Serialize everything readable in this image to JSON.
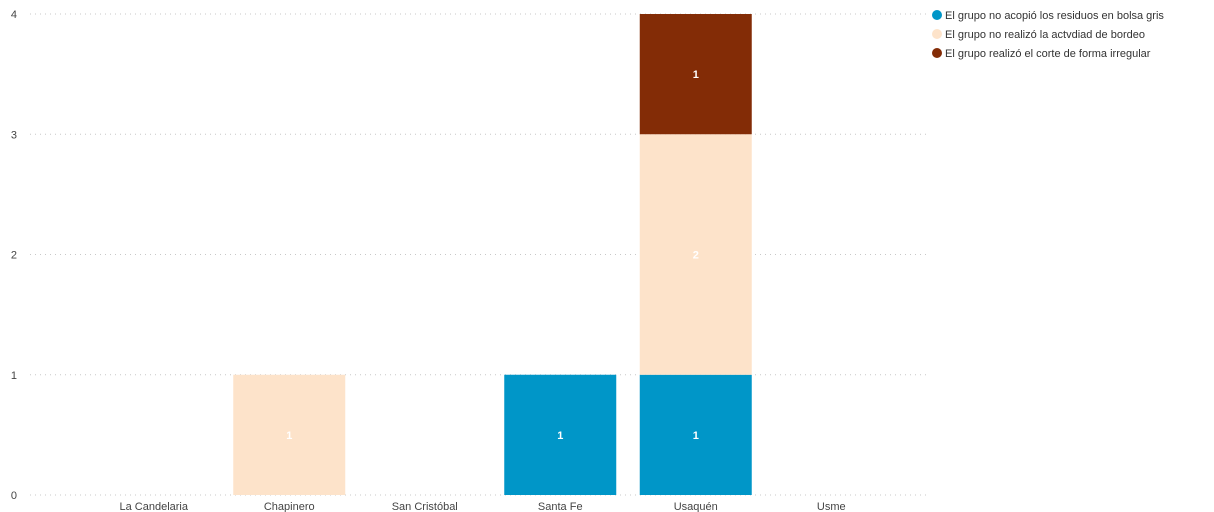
{
  "chart_data": {
    "type": "bar",
    "stacked": true,
    "categories": [
      "La Candelaria",
      "Chapinero",
      "San Cristóbal",
      "Santa Fe",
      "Usaquén",
      "Usme"
    ],
    "series": [
      {
        "name": "El grupo no acopió los residuos en bolsa gris",
        "color": "#0096C8",
        "label_color": "#FFFFFF",
        "values": [
          0,
          0,
          0,
          1,
          1,
          0
        ]
      },
      {
        "name": "El grupo no realizó la actvdiad de bordeo",
        "color": "#FDE3CA",
        "label_color": "#FFFFFF",
        "values": [
          0,
          1,
          0,
          0,
          2,
          0
        ]
      },
      {
        "name": "El grupo realizó el corte de forma irregular",
        "color": "#832C06",
        "label_color": "#FFFFFF",
        "values": [
          0,
          0,
          0,
          0,
          1,
          0
        ]
      }
    ],
    "y_ticks": [
      "0",
      "1",
      "2",
      "3",
      "4"
    ],
    "ylim": [
      0,
      4
    ],
    "grid": true,
    "legend_position": "top-right"
  }
}
